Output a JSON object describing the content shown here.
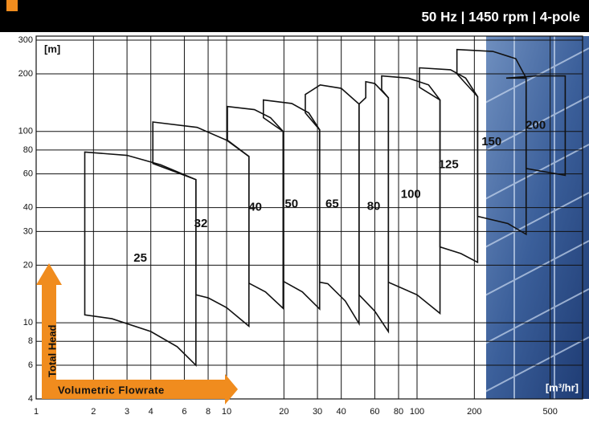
{
  "chart_data": {
    "type": "envelope",
    "title": "50 Hz | 1450 rpm | 4-pole",
    "y_unit": "[m]",
    "x_unit": "[m³/hr]",
    "ylabel": "Total Head",
    "xlabel": "Volumetric Flowrate",
    "xscale": "log",
    "yscale": "log",
    "grid": true,
    "color": "#111111",
    "xlim": [
      1,
      740
    ],
    "ylim": [
      4,
      300
    ],
    "xticks": [
      1,
      2,
      3,
      4,
      6,
      8,
      10,
      20,
      30,
      40,
      60,
      80,
      100,
      200,
      500
    ],
    "yticks": [
      4,
      6,
      8,
      10,
      20,
      30,
      40,
      60,
      80,
      100,
      200,
      300
    ],
    "series": [
      {
        "name": "25",
        "x": [
          1.8,
          3,
          4.5,
          6.9,
          6.9,
          5.5,
          4,
          2.5,
          1.8
        ],
        "values": [
          78,
          75,
          67,
          56,
          6,
          7.5,
          9,
          10.5,
          11
        ]
      },
      {
        "name": "32",
        "x": [
          4.1,
          7,
          10,
          13.1,
          13.1,
          10,
          8,
          6.9,
          6.9,
          4.1
        ],
        "values": [
          112,
          105,
          90,
          74,
          9.6,
          12,
          13.5,
          14,
          56,
          68
        ]
      },
      {
        "name": "40",
        "x": [
          10.1,
          14,
          17,
          19.8,
          19.8,
          16,
          13.1,
          13.1,
          10.1
        ],
        "values": [
          135,
          130,
          118,
          100,
          11.9,
          14.5,
          16.1,
          74,
          90
        ]
      },
      {
        "name": "50",
        "x": [
          15.6,
          22,
          27,
          30.8,
          30.8,
          25,
          19.8,
          19.8,
          15.6
        ],
        "values": [
          146,
          140,
          125,
          102,
          11.8,
          14.5,
          16.5,
          100,
          118
        ]
      },
      {
        "name": "65",
        "x": [
          25.9,
          31,
          40,
          49.6,
          49.6,
          42,
          34,
          30.8,
          30.8,
          25.9
        ],
        "values": [
          156,
          175,
          168,
          139,
          9.9,
          13,
          16,
          16.3,
          102,
          125
        ]
      },
      {
        "name": "80",
        "x": [
          53.8,
          60,
          70.7,
          70.7,
          60,
          49.6,
          49.6,
          53.8
        ],
        "values": [
          182,
          178,
          150,
          9,
          11.5,
          14,
          139,
          150
        ]
      },
      {
        "name": "100",
        "x": [
          65.2,
          90,
          115,
          132,
          132,
          100,
          70.7,
          70.7,
          65.2
        ],
        "values": [
          195,
          190,
          175,
          146,
          11.2,
          14,
          16.3,
          150,
          165
        ]
      },
      {
        "name": "125",
        "x": [
          103,
          150,
          180,
          208,
          208,
          170,
          132,
          132,
          103
        ],
        "values": [
          215,
          210,
          190,
          152,
          20.7,
          23,
          24.9,
          146,
          170
        ]
      },
      {
        "name": "150",
        "x": [
          162,
          250,
          330,
          374,
          374,
          300,
          208,
          208,
          162
        ],
        "values": [
          268,
          262,
          240,
          190,
          29,
          33,
          36,
          152,
          200
        ]
      },
      {
        "name": "200",
        "x": [
          294,
          420,
          600,
          600,
          450,
          374,
          374
        ],
        "values": [
          190,
          195,
          195,
          59,
          62,
          64,
          190
        ]
      }
    ]
  }
}
